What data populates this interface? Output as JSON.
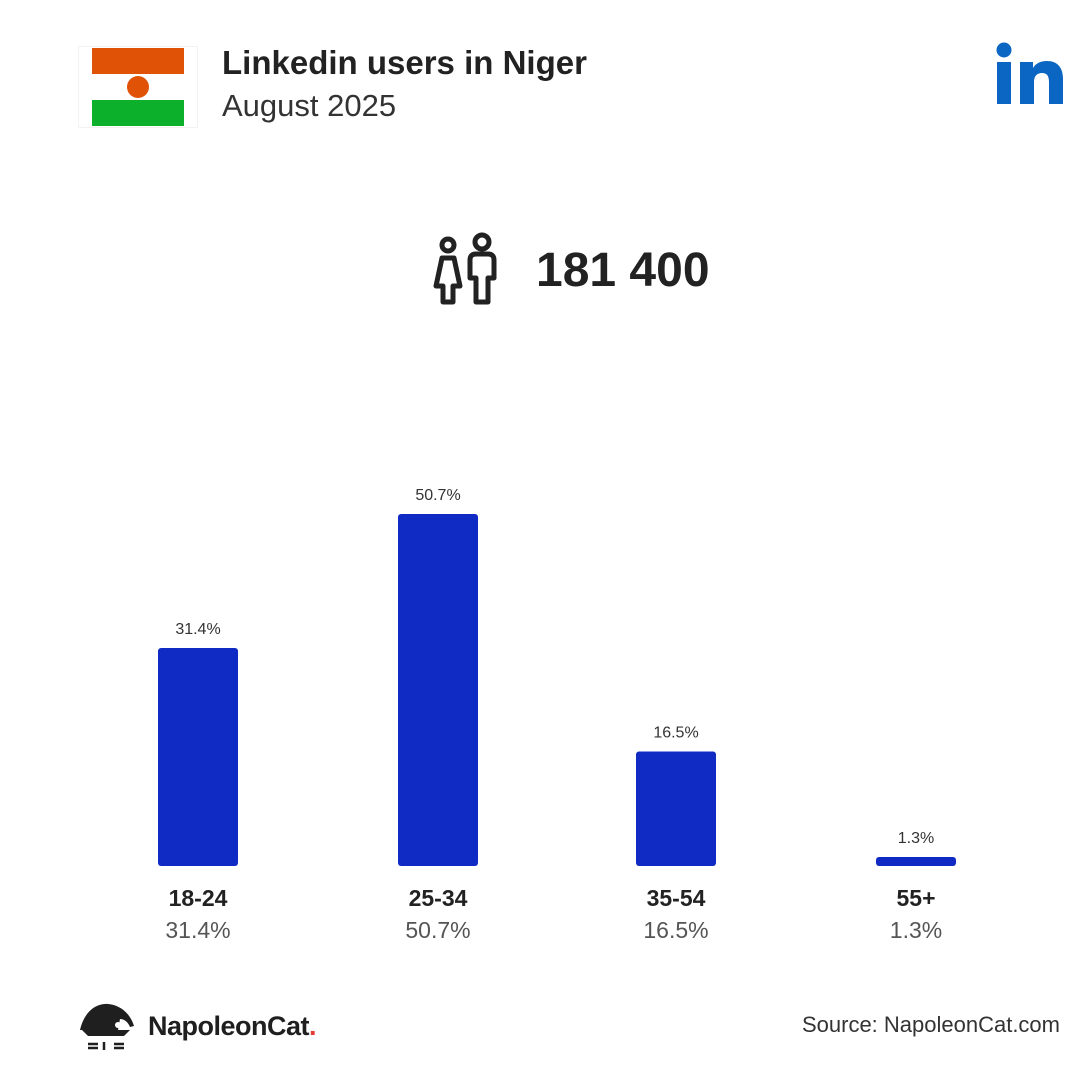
{
  "header": {
    "title": "Linkedin users in Niger",
    "subtitle": "August 2025",
    "flag_colors": {
      "top": "#e05206",
      "middle": "#ffffff",
      "bottom": "#0db02b",
      "disc": "#e05206"
    },
    "brand_icon": "linkedin-logo",
    "brand_color": "#0a66c2"
  },
  "total": {
    "icon": "people-icon",
    "value": "181 400"
  },
  "chart_data": {
    "type": "bar",
    "categories": [
      "18-24",
      "25-34",
      "35-54",
      "55+"
    ],
    "values": [
      31.4,
      50.7,
      16.5,
      1.3
    ],
    "value_labels": [
      "31.4%",
      "50.7%",
      "16.5%",
      "1.3%"
    ],
    "title": "",
    "xlabel": "",
    "ylabel": "",
    "ylim": [
      0,
      50.7
    ],
    "bar_color": "#0f2bc4",
    "grid": false
  },
  "footer": {
    "logo_icon": "napoleoncat-icon",
    "brand_name": "NapoleonCat",
    "brand_dot": ".",
    "source": "Source: NapoleonCat.com"
  }
}
